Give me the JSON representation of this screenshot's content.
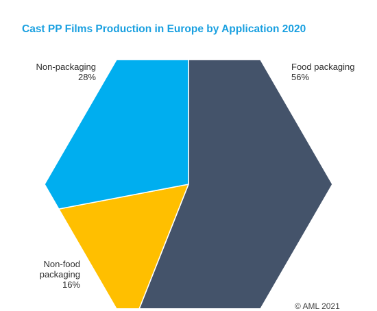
{
  "chart_data": {
    "type": "pie",
    "title": "Cast PP Films Production in Europe by Application 2020",
    "slices": [
      {
        "label": "Food packaging",
        "value": 56,
        "value_label": "56%",
        "color": "#44536a"
      },
      {
        "label": "Non-food packaging",
        "label_lines": [
          "Non-food",
          "packaging"
        ],
        "value": 16,
        "value_label": "16%",
        "color": "#ffbf00"
      },
      {
        "label": "Non-packaging",
        "value": 28,
        "value_label": "28%",
        "color": "#00aeef"
      }
    ],
    "shape": "hexagon",
    "legend": "none"
  },
  "footer": "© AML 2021"
}
